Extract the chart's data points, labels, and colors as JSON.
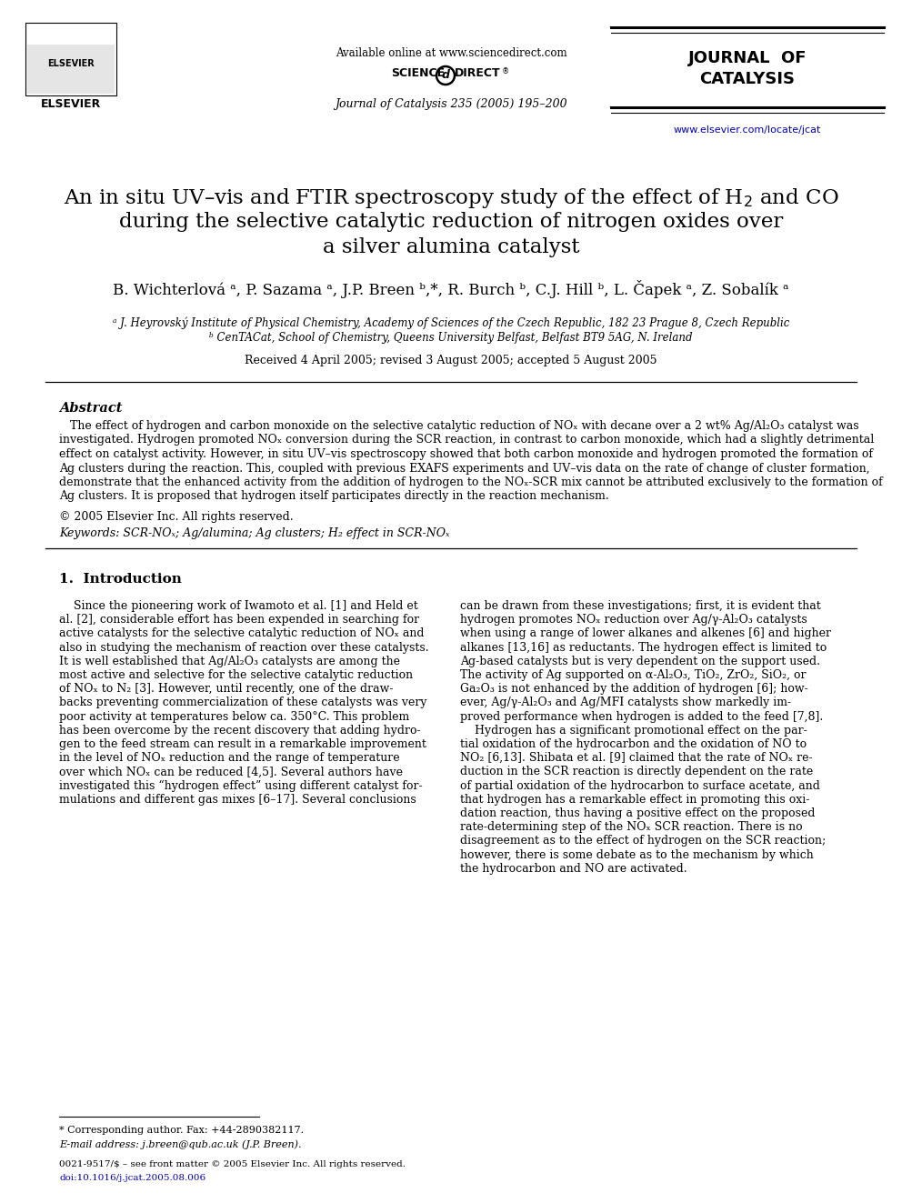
{
  "bg_color": "#ffffff",
  "header": {
    "available_online": "Available online at www.sciencedirect.com",
    "journal_info": "Journal of Catalysis 235 (2005) 195–200",
    "journal_name_line1": "JOURNAL  OF",
    "journal_name_line2": "CATALYSIS",
    "website": "www.elsevier.com/locate/jcat",
    "elsevier_text": "ELSEVIER"
  },
  "title_line1": "An in situ UV–vis and FTIR spectroscopy study of the effect of H",
  "title_h2_sub": "2",
  "title_line1_end": " and CO",
  "title_line2": "during the selective catalytic reduction of nitrogen oxides over",
  "title_line3": "a silver alumina catalyst",
  "authors": "B. Wichterlová ᵃ, P. Sazama ᵃ, J.P. Breen ᵇ,*, R. Burch ᵇ, C.J. Hill ᵇ, L. Čapek ᵃ, Z. Sobalík ᵃ",
  "affil_a": "ᵃ J. Heyrovský Institute of Physical Chemistry, Academy of Sciences of the Czech Republic, 182 23 Prague 8, Czech Republic",
  "affil_b": "ᵇ CenTACat, School of Chemistry, Queens University Belfast, Belfast BT9 5AG, N. Ireland",
  "received": "Received 4 April 2005; revised 3 August 2005; accepted 5 August 2005",
  "abstract_title": "Abstract",
  "copyright": "© 2005 Elsevier Inc. All rights reserved.",
  "keywords": "Keywords: SCR-NOₓ; Ag/alumina; Ag clusters; H₂ effect in SCR-NOₓ",
  "section1_title": "1.  Introduction",
  "footnote_star": "* Corresponding author. Fax: +44-2890382117.",
  "footnote_email": "E-mail address: j.breen@qub.ac.uk (J.P. Breen).",
  "footnote_issn": "0021-9517/$ – see front matter © 2005 Elsevier Inc. All rights reserved.",
  "footnote_doi": "doi:10.1016/j.jcat.2005.08.006",
  "abstract_lines": [
    "   The effect of hydrogen and carbon monoxide on the selective catalytic reduction of NOₓ with decane over a 2 wt% Ag/Al₂O₃ catalyst was",
    "investigated. Hydrogen promoted NOₓ conversion during the SCR reaction, in contrast to carbon monoxide, which had a slightly detrimental",
    "effect on catalyst activity. However, in situ UV–vis spectroscopy showed that both carbon monoxide and hydrogen promoted the formation of",
    "Ag clusters during the reaction. This, coupled with previous EXAFS experiments and UV–vis data on the rate of change of cluster formation,",
    "demonstrate that the enhanced activity from the addition of hydrogen to the NOₓ-SCR mix cannot be attributed exclusively to the formation of",
    "Ag clusters. It is proposed that hydrogen itself participates directly in the reaction mechanism."
  ],
  "left_col_lines": [
    "    Since the pioneering work of Iwamoto et al. [1] and Held et",
    "al. [2], considerable effort has been expended in searching for",
    "active catalysts for the selective catalytic reduction of NOₓ and",
    "also in studying the mechanism of reaction over these catalysts.",
    "It is well established that Ag/Al₂O₃ catalysts are among the",
    "most active and selective for the selective catalytic reduction",
    "of NOₓ to N₂ [3]. However, until recently, one of the draw-",
    "backs preventing commercialization of these catalysts was very",
    "poor activity at temperatures below ca. 350°C. This problem",
    "has been overcome by the recent discovery that adding hydro-",
    "gen to the feed stream can result in a remarkable improvement",
    "in the level of NOₓ reduction and the range of temperature",
    "over which NOₓ can be reduced [4,5]. Several authors have",
    "investigated this “hydrogen effect” using different catalyst for-",
    "mulations and different gas mixes [6–17]. Several conclusions"
  ],
  "right_col_lines": [
    "can be drawn from these investigations; first, it is evident that",
    "hydrogen promotes NOₓ reduction over Ag/γ-Al₂O₃ catalysts",
    "when using a range of lower alkanes and alkenes [6] and higher",
    "alkanes [13,16] as reductants. The hydrogen effect is limited to",
    "Ag-based catalysts but is very dependent on the support used.",
    "The activity of Ag supported on α-Al₂O₃, TiO₂, ZrO₂, SiO₂, or",
    "Ga₂O₃ is not enhanced by the addition of hydrogen [6]; how-",
    "ever, Ag/γ-Al₂O₃ and Ag/MFI catalysts show markedly im-",
    "proved performance when hydrogen is added to the feed [7,8].",
    "    Hydrogen has a significant promotional effect on the par-",
    "tial oxidation of the hydrocarbon and the oxidation of NO to",
    "NO₂ [6,13]. Shibata et al. [9] claimed that the rate of NOₓ re-",
    "duction in the SCR reaction is directly dependent on the rate",
    "of partial oxidation of the hydrocarbon to surface acetate, and",
    "that hydrogen has a remarkable effect in promoting this oxi-",
    "dation reaction, thus having a positive effect on the proposed",
    "rate-determining step of the NOₓ SCR reaction. There is no",
    "disagreement as to the effect of hydrogen on the SCR reaction;",
    "however, there is some debate as to the mechanism by which",
    "the hydrocarbon and NO are activated."
  ]
}
